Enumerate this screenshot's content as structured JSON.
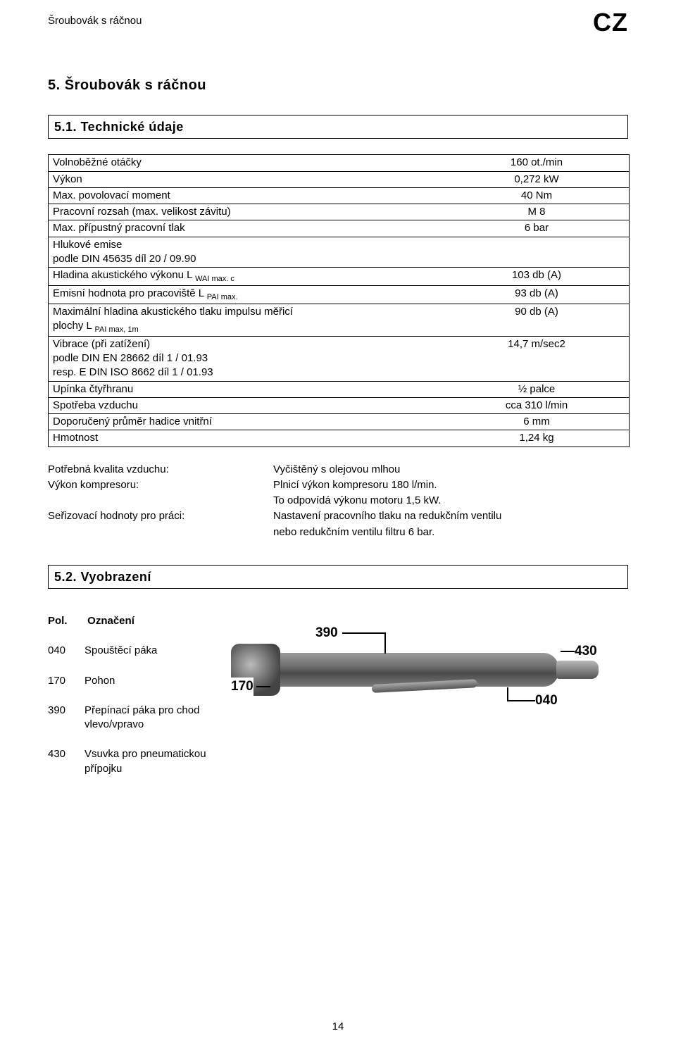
{
  "header": {
    "left": "Šroubovák s ráčnou",
    "right": "CZ"
  },
  "section5": {
    "title": "5. Šroubovák s ráčnou",
    "sub51": "5.1.    Technické údaje",
    "sub52": "5.2.    Vyobrazení"
  },
  "tech_rows": [
    {
      "label_html": "Volnoběžné otáčky",
      "value": "160 ot./min"
    },
    {
      "label_html": "Výkon",
      "value": "0,272 kW"
    },
    {
      "label_html": "Max. povolovací moment",
      "value": "40 Nm"
    },
    {
      "label_html": "Pracovní rozsah (max. velikost závitu)",
      "value": "M 8"
    },
    {
      "label_html": "Max. přípustný pracovní tlak",
      "value": "6 bar"
    },
    {
      "label_html": "Hlukové emise<br>podle DIN 45635 díl 20 / 09.90",
      "value": ""
    },
    {
      "label_html": "Hladina akustického výkonu L <span class=\"sub\">WAI max. c</span>",
      "value": "103 db (A)"
    },
    {
      "label_html": "Emisní hodnota pro pracoviště L <span class=\"sub\">PAI max.</span>",
      "value": "93 db (A)"
    },
    {
      "label_html": "Maximální hladina akustického tlaku impulsu měřicí<br>plochy L <span class=\"sub\">PAI max, 1m</span>",
      "value": "90 db (A)"
    },
    {
      "label_html": "Vibrace (při zatížení)<br>podle DIN EN 28662 díl 1 / 01.93<br>resp. E DIN ISO 8662 díl 1 / 01.93",
      "value": "14,7 m/sec2"
    },
    {
      "label_html": "Upínka čtyřhranu",
      "value": "½ palce"
    },
    {
      "label_html": "Spotřeba vzduchu",
      "value": "cca 310 l/min"
    },
    {
      "label_html": "Doporučený průměr hadice vnitřní",
      "value": "6 mm"
    },
    {
      "label_html": "Hmotnost",
      "value": "1,24 kg"
    }
  ],
  "kv": {
    "left": [
      "Potřebná kvalita vzduchu:",
      "Výkon kompresoru:",
      "",
      "Seřizovací hodnoty pro práci:"
    ],
    "right": [
      "Vyčištěný s olejovou mlhou",
      "Plnicí výkon kompresoru  180 l/min.",
      "To odpovídá výkonu motoru 1,5 kW.",
      "Nastavení pracovního tlaku na redukčním ventilu",
      "nebo redukčním ventilu filtru 6 bar."
    ]
  },
  "fig": {
    "pol_header_a": "Pol.",
    "pol_header_b": "Označení",
    "rows": [
      {
        "num": "040",
        "lab": "Spouštěcí páka"
      },
      {
        "num": "170",
        "lab": "Pohon"
      },
      {
        "num": "390",
        "lab": "Přepínací  páka pro chod vlevo/vpravo"
      },
      {
        "num": "430",
        "lab": "Vsuvka pro pneumatickou přípojku"
      }
    ],
    "callouts": {
      "c390": "390",
      "c170": "170",
      "c430": "430",
      "c040": "040"
    }
  },
  "page_number": "14"
}
